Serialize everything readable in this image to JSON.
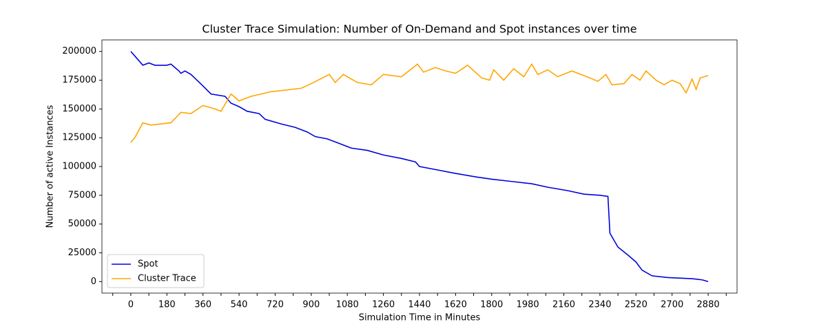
{
  "chart_data": {
    "type": "line",
    "title": "Cluster Trace Simulation: Number of On-Demand and Spot instances over time",
    "xlabel": "Simulation Time in Minutes",
    "ylabel": "Number of active Instances",
    "xlim": [
      -144,
      3024
    ],
    "ylim": [
      -10000,
      210000
    ],
    "xticks": [
      0,
      180,
      360,
      540,
      720,
      900,
      1080,
      1260,
      1440,
      1620,
      1800,
      1980,
      2160,
      2340,
      2520,
      2700,
      2880
    ],
    "xminorticks": [
      -90,
      90,
      270,
      450,
      630,
      810,
      990,
      1170,
      1350,
      1530,
      1710,
      1890,
      2070,
      2250,
      2430,
      2610,
      2790,
      2970
    ],
    "yticks": [
      0,
      25000,
      50000,
      75000,
      100000,
      125000,
      150000,
      175000,
      200000
    ],
    "legend": "lower left",
    "series": [
      {
        "name": "Spot",
        "color": "#0000dd",
        "x": [
          0,
          20,
          60,
          90,
          120,
          180,
          200,
          240,
          250,
          270,
          300,
          360,
          400,
          470,
          500,
          540,
          580,
          640,
          670,
          750,
          820,
          880,
          920,
          980,
          1040,
          1100,
          1180,
          1260,
          1350,
          1420,
          1440,
          1530,
          1620,
          1720,
          1800,
          1900,
          2000,
          2080,
          2180,
          2260,
          2340,
          2380,
          2390,
          2430,
          2480,
          2520,
          2550,
          2600,
          2680,
          2800,
          2850,
          2880
        ],
        "values": [
          200000,
          196000,
          188000,
          190000,
          188000,
          188000,
          189000,
          183000,
          181000,
          183000,
          180000,
          170000,
          163000,
          161000,
          155000,
          152000,
          148000,
          146000,
          141000,
          137000,
          134000,
          130000,
          126000,
          124000,
          120000,
          116000,
          114000,
          110000,
          107000,
          104000,
          100000,
          97000,
          94000,
          91000,
          89000,
          87000,
          85000,
          82000,
          79000,
          76000,
          75000,
          74000,
          42000,
          30000,
          23000,
          17000,
          10000,
          5000,
          3500,
          2500,
          1500,
          0
        ]
      },
      {
        "name": "Cluster Trace",
        "color": "#ffa500",
        "x": [
          0,
          20,
          60,
          100,
          200,
          250,
          300,
          360,
          420,
          450,
          500,
          540,
          600,
          700,
          850,
          900,
          990,
          1020,
          1060,
          1130,
          1200,
          1260,
          1350,
          1430,
          1460,
          1520,
          1570,
          1620,
          1680,
          1750,
          1790,
          1810,
          1860,
          1910,
          1960,
          2000,
          2030,
          2080,
          2130,
          2200,
          2290,
          2330,
          2370,
          2400,
          2460,
          2500,
          2540,
          2570,
          2620,
          2660,
          2700,
          2740,
          2770,
          2800,
          2820,
          2840,
          2880
        ],
        "values": [
          121000,
          125000,
          138000,
          136000,
          138000,
          147000,
          146000,
          153000,
          150000,
          148000,
          163000,
          157000,
          161000,
          165000,
          168000,
          172000,
          180000,
          173000,
          180000,
          173000,
          171000,
          180000,
          178000,
          189000,
          182000,
          186000,
          183000,
          181000,
          188000,
          177000,
          175000,
          184000,
          175000,
          185000,
          178000,
          189000,
          180000,
          184000,
          178000,
          183000,
          177000,
          174000,
          180000,
          171000,
          172000,
          180000,
          175000,
          183000,
          175000,
          171000,
          175000,
          172000,
          164000,
          176000,
          167000,
          177000,
          179000
        ]
      }
    ]
  }
}
